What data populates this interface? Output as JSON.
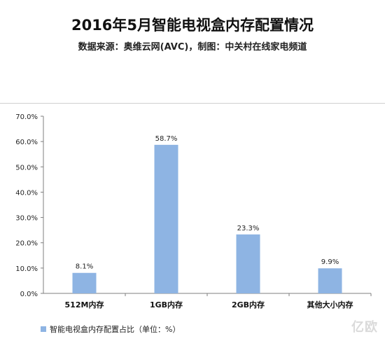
{
  "title": "2016年5月智能电视盒内存配置情况",
  "subtitle": "数据来源：奥维云网(AVC)，制图：中关村在线家电频道",
  "legend_label": "智能电视盒内存配置占比（单位：%）",
  "watermark": "亿欧",
  "colors": {
    "bar": "#8eb4e3",
    "axis": "#7f7f7f"
  },
  "chart_data": {
    "type": "bar",
    "categories": [
      "512M内存",
      "1GB内存",
      "2GB内存",
      "其他大小内存"
    ],
    "values": [
      8.1,
      58.7,
      23.3,
      9.9
    ],
    "value_labels": [
      "8.1%",
      "58.7%",
      "23.3%",
      "9.9%"
    ],
    "yticks": [
      "0.0%",
      "10.0%",
      "20.0%",
      "30.0%",
      "40.0%",
      "50.0%",
      "60.0%",
      "70.0%"
    ],
    "ylim": [
      0,
      70
    ],
    "legend": "bottom-left",
    "grid": false
  }
}
